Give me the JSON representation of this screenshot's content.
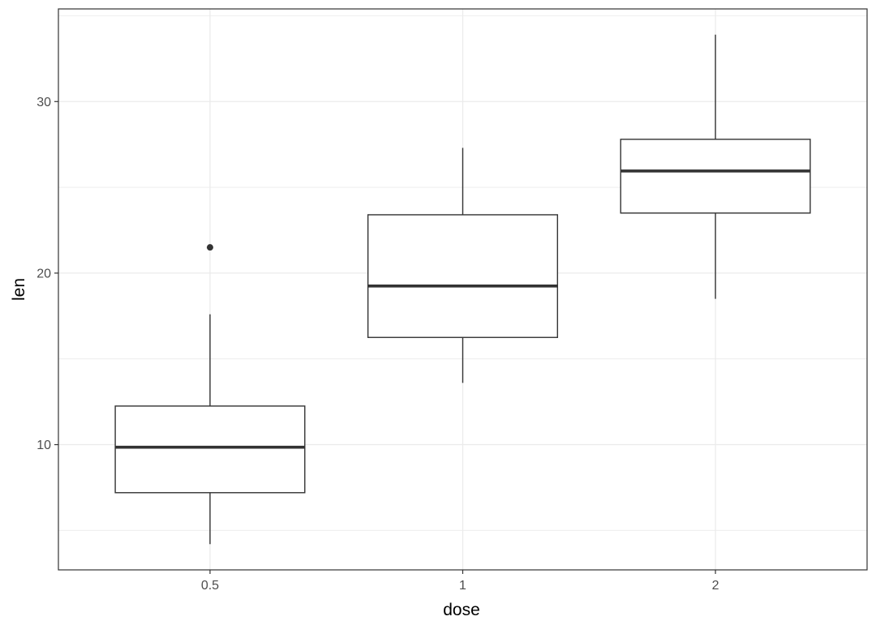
{
  "chart_data": {
    "type": "boxplot",
    "xlabel": "dose",
    "ylabel": "len",
    "categories": [
      "0.5",
      "1",
      "2"
    ],
    "boxes": [
      {
        "category": "0.5",
        "whisker_low": 4.2,
        "q1": 7.2,
        "median": 9.85,
        "q3": 12.25,
        "whisker_high": 17.6,
        "outliers": [
          21.5
        ]
      },
      {
        "category": "1",
        "whisker_low": 13.6,
        "q1": 16.25,
        "median": 19.25,
        "q3": 23.4,
        "whisker_high": 27.3,
        "outliers": []
      },
      {
        "category": "2",
        "whisker_low": 18.5,
        "q1": 23.5,
        "median": 25.95,
        "q3": 27.8,
        "whisker_high": 33.9,
        "outliers": []
      }
    ],
    "y_ticks": [
      10,
      20,
      30
    ],
    "y_tick_labels": [
      "10",
      "20",
      "30"
    ],
    "ylim": [
      2.7,
      35.4
    ],
    "grid": true,
    "theme": "bw",
    "colors": {
      "box_line": "#333333",
      "grid": "#ebebeb",
      "panel_border": "#333333",
      "background": "#ffffff"
    }
  }
}
